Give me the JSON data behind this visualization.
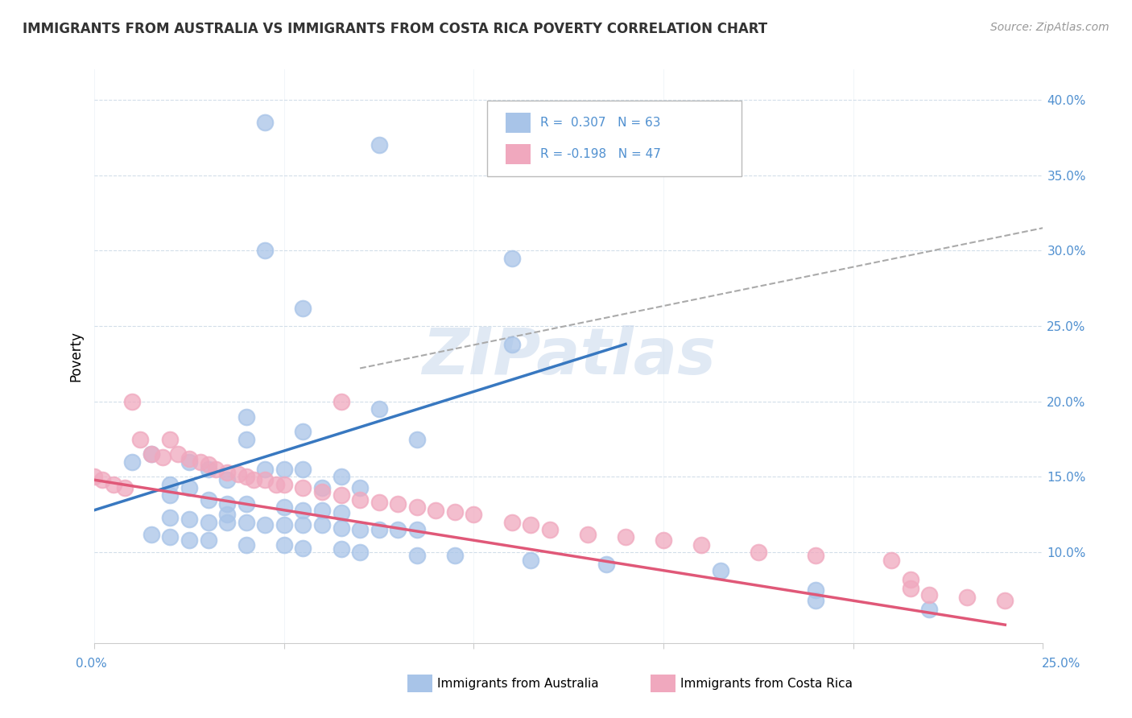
{
  "title": "IMMIGRANTS FROM AUSTRALIA VS IMMIGRANTS FROM COSTA RICA POVERTY CORRELATION CHART",
  "source": "Source: ZipAtlas.com",
  "ylabel": "Poverty",
  "xlim": [
    0.0,
    0.25
  ],
  "ylim": [
    0.04,
    0.42
  ],
  "yticks": [
    0.1,
    0.15,
    0.2,
    0.25,
    0.3,
    0.35,
    0.4
  ],
  "watermark": "ZIPatlas",
  "color_australia": "#a8c4e8",
  "color_costa_rica": "#f0a8be",
  "color_line_australia": "#3878c0",
  "color_line_costa_rica": "#e05878",
  "color_tick": "#5090d0",
  "aus_line_x0": 0.0,
  "aus_line_y0": 0.128,
  "aus_line_x1": 0.14,
  "aus_line_y1": 0.238,
  "cr_line_x0": 0.0,
  "cr_line_y0": 0.148,
  "cr_line_x1": 0.24,
  "cr_line_y1": 0.052,
  "dash_line_x0": 0.07,
  "dash_line_y0": 0.222,
  "dash_line_x1": 0.25,
  "dash_line_y1": 0.315,
  "australia_points": [
    [
      0.045,
      0.385
    ],
    [
      0.075,
      0.37
    ],
    [
      0.045,
      0.3
    ],
    [
      0.055,
      0.262
    ],
    [
      0.11,
      0.295
    ],
    [
      0.11,
      0.238
    ],
    [
      0.075,
      0.195
    ],
    [
      0.04,
      0.19
    ],
    [
      0.055,
      0.18
    ],
    [
      0.04,
      0.175
    ],
    [
      0.085,
      0.175
    ],
    [
      0.015,
      0.165
    ],
    [
      0.01,
      0.16
    ],
    [
      0.025,
      0.16
    ],
    [
      0.03,
      0.155
    ],
    [
      0.045,
      0.155
    ],
    [
      0.05,
      0.155
    ],
    [
      0.055,
      0.155
    ],
    [
      0.065,
      0.15
    ],
    [
      0.035,
      0.148
    ],
    [
      0.02,
      0.145
    ],
    [
      0.025,
      0.143
    ],
    [
      0.06,
      0.143
    ],
    [
      0.07,
      0.143
    ],
    [
      0.02,
      0.138
    ],
    [
      0.03,
      0.135
    ],
    [
      0.035,
      0.132
    ],
    [
      0.04,
      0.132
    ],
    [
      0.05,
      0.13
    ],
    [
      0.055,
      0.128
    ],
    [
      0.06,
      0.128
    ],
    [
      0.065,
      0.126
    ],
    [
      0.035,
      0.125
    ],
    [
      0.02,
      0.123
    ],
    [
      0.025,
      0.122
    ],
    [
      0.03,
      0.12
    ],
    [
      0.035,
      0.12
    ],
    [
      0.04,
      0.12
    ],
    [
      0.045,
      0.118
    ],
    [
      0.05,
      0.118
    ],
    [
      0.055,
      0.118
    ],
    [
      0.06,
      0.118
    ],
    [
      0.065,
      0.116
    ],
    [
      0.07,
      0.115
    ],
    [
      0.075,
      0.115
    ],
    [
      0.08,
      0.115
    ],
    [
      0.085,
      0.115
    ],
    [
      0.015,
      0.112
    ],
    [
      0.02,
      0.11
    ],
    [
      0.025,
      0.108
    ],
    [
      0.03,
      0.108
    ],
    [
      0.04,
      0.105
    ],
    [
      0.05,
      0.105
    ],
    [
      0.055,
      0.103
    ],
    [
      0.065,
      0.102
    ],
    [
      0.07,
      0.1
    ],
    [
      0.085,
      0.098
    ],
    [
      0.095,
      0.098
    ],
    [
      0.115,
      0.095
    ],
    [
      0.135,
      0.092
    ],
    [
      0.165,
      0.088
    ],
    [
      0.19,
      0.075
    ],
    [
      0.19,
      0.068
    ],
    [
      0.22,
      0.062
    ]
  ],
  "costarica_points": [
    [
      0.0,
      0.15
    ],
    [
      0.002,
      0.148
    ],
    [
      0.005,
      0.145
    ],
    [
      0.008,
      0.143
    ],
    [
      0.01,
      0.2
    ],
    [
      0.012,
      0.175
    ],
    [
      0.015,
      0.165
    ],
    [
      0.018,
      0.163
    ],
    [
      0.02,
      0.175
    ],
    [
      0.022,
      0.165
    ],
    [
      0.025,
      0.162
    ],
    [
      0.028,
      0.16
    ],
    [
      0.03,
      0.158
    ],
    [
      0.032,
      0.155
    ],
    [
      0.035,
      0.153
    ],
    [
      0.038,
      0.152
    ],
    [
      0.04,
      0.15
    ],
    [
      0.042,
      0.148
    ],
    [
      0.045,
      0.148
    ],
    [
      0.048,
      0.145
    ],
    [
      0.05,
      0.145
    ],
    [
      0.055,
      0.143
    ],
    [
      0.06,
      0.14
    ],
    [
      0.065,
      0.138
    ],
    [
      0.065,
      0.2
    ],
    [
      0.07,
      0.135
    ],
    [
      0.075,
      0.133
    ],
    [
      0.08,
      0.132
    ],
    [
      0.085,
      0.13
    ],
    [
      0.09,
      0.128
    ],
    [
      0.095,
      0.127
    ],
    [
      0.1,
      0.125
    ],
    [
      0.11,
      0.12
    ],
    [
      0.115,
      0.118
    ],
    [
      0.12,
      0.115
    ],
    [
      0.13,
      0.112
    ],
    [
      0.14,
      0.11
    ],
    [
      0.15,
      0.108
    ],
    [
      0.16,
      0.105
    ],
    [
      0.175,
      0.1
    ],
    [
      0.19,
      0.098
    ],
    [
      0.21,
      0.095
    ],
    [
      0.215,
      0.076
    ],
    [
      0.215,
      0.082
    ],
    [
      0.22,
      0.072
    ],
    [
      0.23,
      0.07
    ],
    [
      0.24,
      0.068
    ]
  ]
}
